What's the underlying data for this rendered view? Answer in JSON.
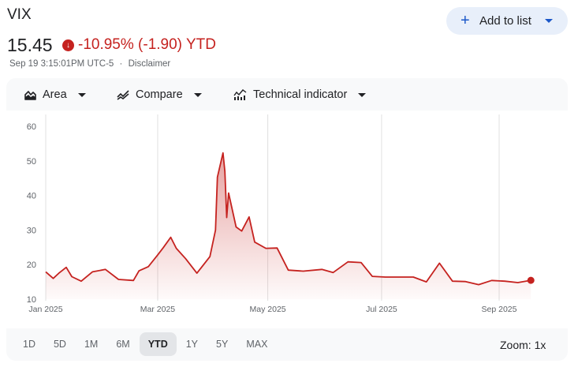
{
  "header": {
    "title": "VIX",
    "add_to_list_label": "Add to list",
    "price": "15.45",
    "change": "-10.95% (-1.90) YTD",
    "timestamp": "Sep 19 3:15:01PM UTC-5",
    "separator": "·",
    "disclaimer": "Disclaimer"
  },
  "toolbar": {
    "area_label": "Area",
    "compare_label": "Compare",
    "indicator_label": "Technical indicator"
  },
  "ranges": [
    "1D",
    "5D",
    "1M",
    "6M",
    "YTD",
    "1Y",
    "5Y",
    "MAX"
  ],
  "active_range": "YTD",
  "zoom_label": "Zoom: 1x",
  "colors": {
    "accent_blue": "#1a57c8",
    "negative_red": "#c5221f",
    "line": "#c5221f"
  },
  "chart_data": {
    "type": "area",
    "title": "",
    "xlabel": "",
    "ylabel": "",
    "x_ticks": [
      "Jan 2025",
      "Mar 2025",
      "May 2025",
      "Jul 2025",
      "Sep 2025"
    ],
    "x_tick_dates": [
      "2025-01-02",
      "2025-03-03",
      "2025-05-01",
      "2025-07-01",
      "2025-09-02"
    ],
    "y_ticks": [
      10,
      20,
      30,
      40,
      50,
      60
    ],
    "ylim": [
      10,
      60
    ],
    "xlim": [
      "2024-12-31",
      "2025-09-29"
    ],
    "grid": "vertical",
    "series": [
      {
        "x": [
          "2025-01-02",
          "2025-01-06",
          "2025-01-09",
          "2025-01-13",
          "2025-01-16",
          "2025-01-21",
          "2025-01-27",
          "2025-02-03",
          "2025-02-10",
          "2025-02-18",
          "2025-02-21",
          "2025-02-26",
          "2025-03-03",
          "2025-03-06",
          "2025-03-10",
          "2025-03-13",
          "2025-03-18",
          "2025-03-24",
          "2025-03-31",
          "2025-04-03",
          "2025-04-04",
          "2025-04-07",
          "2025-04-08",
          "2025-04-09",
          "2025-04-10",
          "2025-04-14",
          "2025-04-17",
          "2025-04-21",
          "2025-04-24",
          "2025-04-30",
          "2025-05-06",
          "2025-05-12",
          "2025-05-20",
          "2025-05-30",
          "2025-06-05",
          "2025-06-13",
          "2025-06-20",
          "2025-06-26",
          "2025-07-03",
          "2025-07-11",
          "2025-07-18",
          "2025-07-25",
          "2025-08-01",
          "2025-08-08",
          "2025-08-15",
          "2025-08-22",
          "2025-08-29",
          "2025-09-05",
          "2025-09-12",
          "2025-09-19"
        ],
        "values": [
          17.9,
          16.0,
          17.5,
          19.2,
          16.5,
          15.2,
          17.9,
          18.6,
          15.7,
          15.4,
          18.2,
          19.4,
          22.8,
          24.9,
          27.9,
          24.7,
          21.7,
          17.5,
          22.3,
          30.0,
          45.3,
          52.3,
          46.9,
          33.6,
          40.7,
          30.9,
          29.7,
          33.8,
          26.5,
          24.7,
          24.8,
          18.4,
          18.1,
          18.6,
          17.7,
          20.8,
          20.6,
          16.6,
          16.4,
          16.4,
          16.4,
          15.0,
          20.4,
          15.2,
          15.1,
          14.2,
          15.4,
          15.2,
          14.8,
          15.45
        ]
      }
    ]
  }
}
